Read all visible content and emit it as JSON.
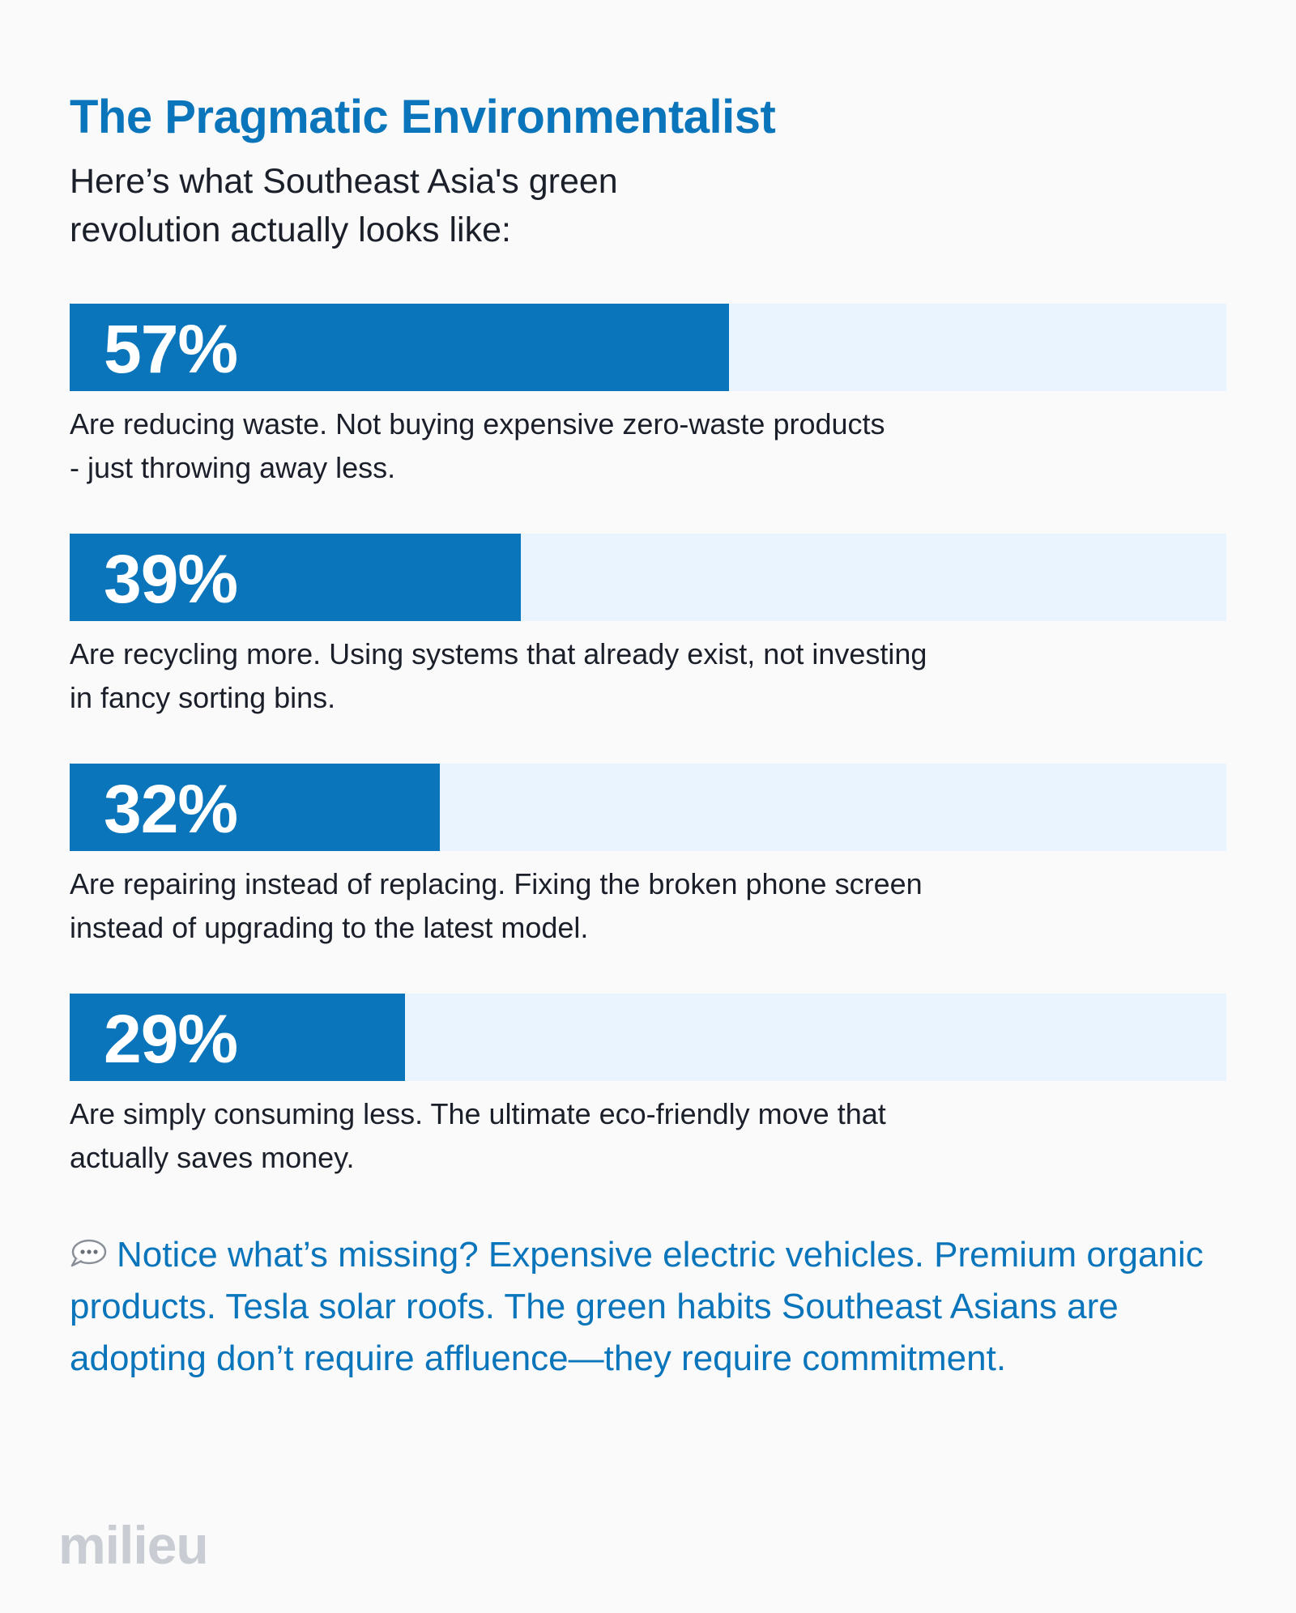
{
  "title": "The Pragmatic Environmentalist",
  "subtitle": "Here’s what Southeast Asia's green revolution actually looks like:",
  "colors": {
    "accent": "#0a75bb",
    "track": "#eaf4fe",
    "text": "#1b1f2a",
    "brand": "#c9cdd3",
    "background": "#fafafa"
  },
  "chart_data": {
    "type": "bar",
    "orientation": "horizontal",
    "xlim": [
      0,
      100
    ],
    "categories": [
      "Are reducing waste. Not buying expensive zero-waste products\n- just throwing away less.",
      "Are recycling more. Using systems that already exist, not investing\nin fancy sorting bins.",
      "Are repairing instead of replacing. Fixing the broken phone screen\ninstead of upgrading to the latest model.",
      "Are simply consuming less. The ultimate eco-friendly move that\nactually saves money."
    ],
    "values": [
      57,
      39,
      32,
      29
    ],
    "labels": [
      "57%",
      "39%",
      "32%",
      "29%"
    ]
  },
  "note": {
    "icon": "speech-bubble-icon",
    "text": "Notice what’s missing? Expensive electric vehicles. Premium organic products. Tesla solar roofs. The green habits Southeast Asians are adopting don’t require affluence—they require commitment."
  },
  "brand": "milieu"
}
